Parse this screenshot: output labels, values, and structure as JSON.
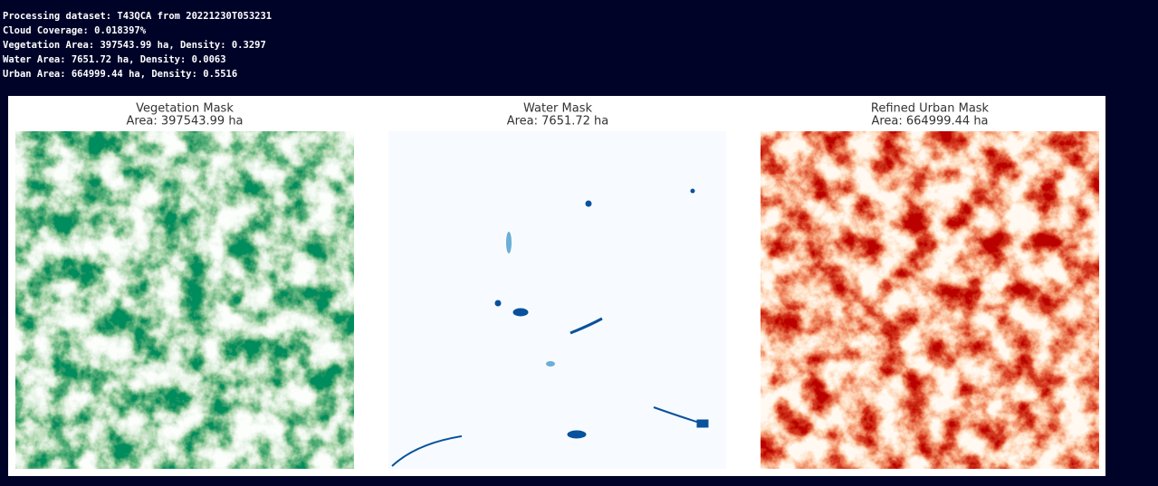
{
  "log_lines": [
    "Processing dataset: T43QCA from 20221230T053231",
    "Cloud Coverage: 0.018397%",
    "Vegetation Area: 397543.99 ha, Density: 0.3297",
    "Water Area: 7651.72 ha, Density: 0.0063",
    "Urban Area: 664999.44 ha, Density: 0.5516"
  ],
  "panels": [
    {
      "title": "Vegetation Mask",
      "subtitle": "Area: 397543.99 ha"
    },
    {
      "title": "Water Mask",
      "subtitle": "Area: 7651.72 ha"
    },
    {
      "title": "Refined Urban Mask",
      "subtitle": "Area: 664999.44 ha"
    }
  ]
}
